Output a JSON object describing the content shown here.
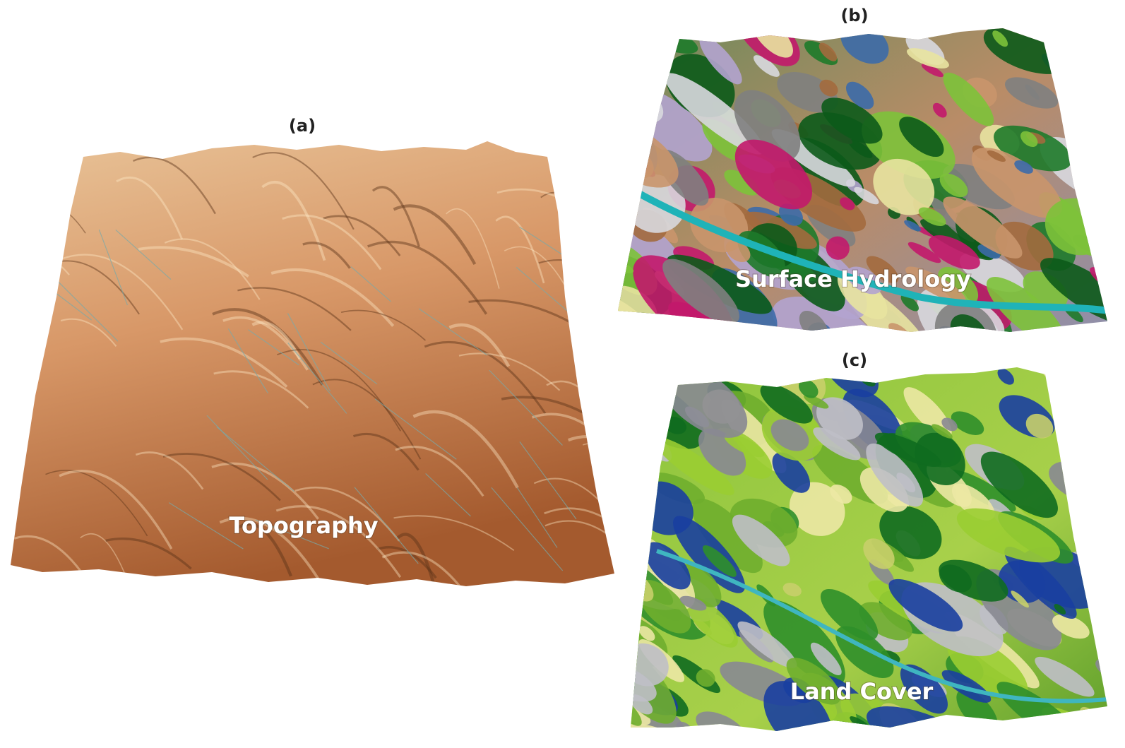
{
  "panels": [
    {
      "label": "(a)",
      "title": "Topography"
    },
    {
      "label": "(b)",
      "title": "Surface Hydrology"
    },
    {
      "label": "(c)",
      "title": "Land Cover"
    }
  ]
}
